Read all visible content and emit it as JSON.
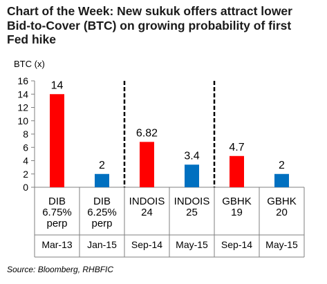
{
  "title_lines": [
    "Chart of the Week: New sukuk offers attract lower",
    "Bid-to-Cover (BTC) on growing probability of first",
    "Fed hike"
  ],
  "source": "Source: Bloomberg, RHBFIC",
  "colors": {
    "red": "#FF0000",
    "blue": "#0070C0"
  },
  "chart_data": {
    "type": "bar",
    "ylabel": "BTC (x)",
    "ylim": [
      0,
      16
    ],
    "yticks": [
      0,
      2,
      4,
      6,
      8,
      10,
      12,
      14,
      16
    ],
    "grid": false,
    "categories": [
      {
        "lines": [
          "DIB",
          "6.75%",
          "perp"
        ],
        "date": "Mar-13",
        "value": 14,
        "label": "14",
        "color": "red"
      },
      {
        "lines": [
          "DIB",
          "6.25%",
          "perp"
        ],
        "date": "Jan-15",
        "value": 2,
        "label": "2",
        "color": "blue"
      },
      {
        "lines": [
          "INDOIS",
          "24"
        ],
        "date": "Sep-14",
        "value": 6.82,
        "label": "6.82",
        "color": "red"
      },
      {
        "lines": [
          "INDOIS",
          "25"
        ],
        "date": "May-15",
        "value": 3.4,
        "label": "3.4",
        "color": "blue"
      },
      {
        "lines": [
          "GBHK",
          "19"
        ],
        "date": "Sep-14",
        "value": 4.7,
        "label": "4.7",
        "color": "red"
      },
      {
        "lines": [
          "GBHK",
          "20"
        ],
        "date": "May-15",
        "value": 2,
        "label": "2",
        "color": "blue"
      }
    ],
    "dividers_after": [
      1,
      3
    ]
  }
}
